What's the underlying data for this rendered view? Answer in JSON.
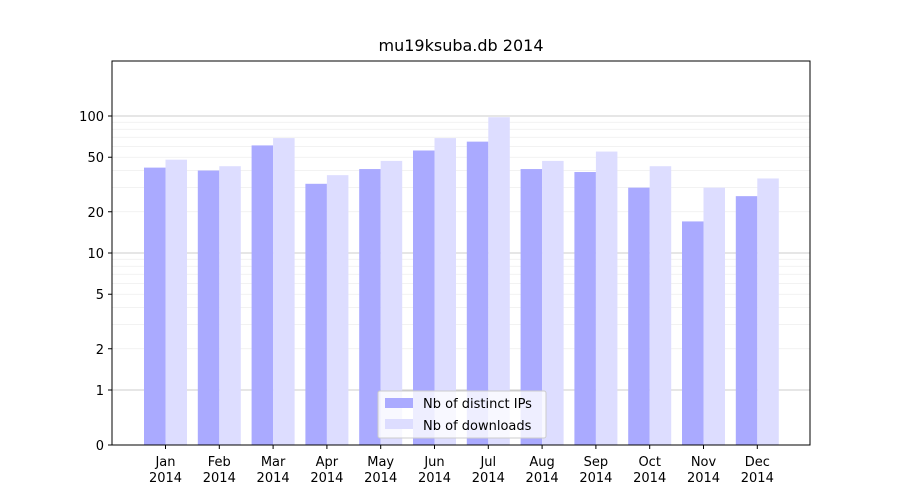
{
  "chart_data": {
    "type": "bar",
    "title": "mu19ksuba.db 2014",
    "xlabel": "",
    "ylabel": "",
    "scale": "symlog",
    "categories": [
      [
        "Jan",
        "2014"
      ],
      [
        "Feb",
        "2014"
      ],
      [
        "Mar",
        "2014"
      ],
      [
        "Apr",
        "2014"
      ],
      [
        "May",
        "2014"
      ],
      [
        "Jun",
        "2014"
      ],
      [
        "Jul",
        "2014"
      ],
      [
        "Aug",
        "2014"
      ],
      [
        "Sep",
        "2014"
      ],
      [
        "Oct",
        "2014"
      ],
      [
        "Nov",
        "2014"
      ],
      [
        "Dec",
        "2014"
      ]
    ],
    "series": [
      {
        "name": "Nb of distinct IPs",
        "color": "#aaaaff",
        "values": [
          42,
          40,
          61,
          32,
          41,
          56,
          65,
          41,
          39,
          30,
          17,
          26
        ]
      },
      {
        "name": "Nb of downloads",
        "color": "#ddddff",
        "values": [
          48,
          43,
          69,
          37,
          47,
          69,
          98,
          47,
          55,
          43,
          30,
          35
        ]
      }
    ],
    "yticks": [
      0,
      1,
      2,
      5,
      10,
      20,
      50,
      100
    ],
    "ylim": [
      0,
      120
    ],
    "grid": true,
    "legend_position": "bottom-center"
  }
}
